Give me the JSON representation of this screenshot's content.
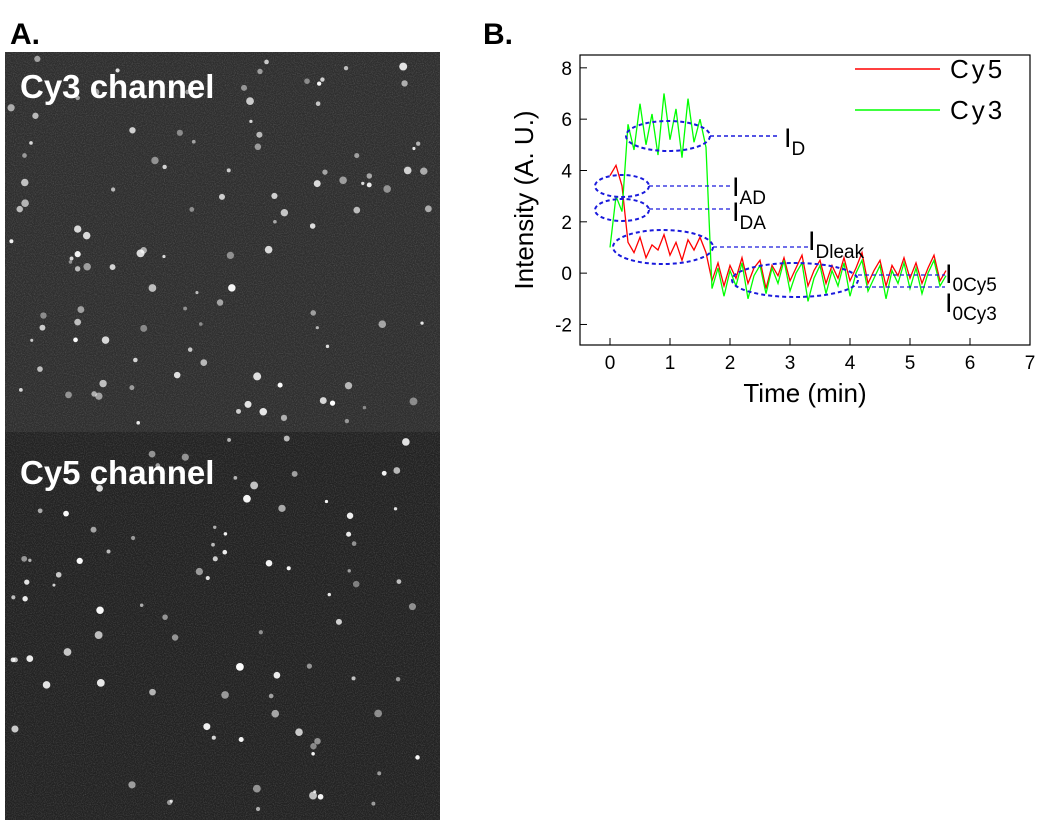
{
  "figure": {
    "panel_a": {
      "label": "A.",
      "channels": [
        "Cy3 channel",
        "Cy5 channel"
      ]
    },
    "panel_b_label": "B."
  },
  "chart_data": {
    "type": "line",
    "xlabel": "Time (min)",
    "ylabel": "Intensity (A. U.)",
    "x": [
      0,
      0.1,
      0.2,
      0.3,
      0.4,
      0.5,
      0.6,
      0.7,
      0.8,
      0.9,
      1.0,
      1.1,
      1.2,
      1.3,
      1.4,
      1.5,
      1.6,
      1.7,
      1.8,
      1.9,
      2.0,
      2.1,
      2.2,
      2.3,
      2.4,
      2.5,
      2.6,
      2.7,
      2.8,
      2.9,
      3.0,
      3.1,
      3.2,
      3.3,
      3.4,
      3.5,
      3.6,
      3.7,
      3.8,
      3.9,
      4.0,
      4.1,
      4.2,
      4.3,
      4.4,
      4.5,
      4.6,
      4.7,
      4.8,
      4.9,
      5.0,
      5.1,
      5.2,
      5.3,
      5.4,
      5.5,
      5.6
    ],
    "series": [
      {
        "name": "Cy5",
        "color": "#ff0000",
        "values": [
          3.8,
          4.2,
          3.4,
          1.2,
          0.8,
          1.4,
          0.6,
          1.1,
          0.9,
          1.5,
          0.7,
          1.2,
          0.5,
          1.3,
          0.9,
          1.4,
          0.8,
          -0.3,
          0.4,
          -0.5,
          0.3,
          -0.2,
          0.6,
          -0.4,
          0.2,
          0.5,
          -0.6,
          0.3,
          -0.1,
          0.6,
          -0.3,
          0.2,
          0.7,
          -0.5,
          0.1,
          0.5,
          -0.4,
          0.3,
          -0.2,
          0.6,
          -0.3,
          0.2,
          0.8,
          -0.4,
          0.1,
          0.5,
          -0.5,
          0.3,
          -0.1,
          0.6,
          -0.2,
          0.4,
          -0.4,
          0.2,
          0.7,
          -0.3,
          0.1
        ]
      },
      {
        "name": "Cy3",
        "color": "#00ff00",
        "values": [
          1.0,
          3.0,
          2.4,
          5.8,
          4.8,
          6.6,
          5.0,
          6.2,
          4.6,
          7.0,
          5.2,
          6.4,
          4.5,
          6.8,
          5.1,
          6.0,
          4.9,
          -0.6,
          0.2,
          -0.9,
          0.1,
          -0.5,
          0.4,
          -1.0,
          -0.1,
          0.3,
          -0.8,
          0.2,
          -0.4,
          0.5,
          -0.7,
          0.0,
          0.4,
          -1.1,
          -0.2,
          0.3,
          -0.8,
          0.1,
          -0.5,
          0.4,
          -0.9,
          0.0,
          0.5,
          -0.7,
          -0.2,
          0.3,
          -1.0,
          0.1,
          -0.4,
          0.4,
          -0.6,
          0.2,
          -0.8,
          0.0,
          0.5,
          -0.5,
          -0.1
        ]
      }
    ],
    "xlim": [
      -0.5,
      7
    ],
    "ylim": [
      -2.8,
      8.5
    ],
    "xticks": [
      0,
      1,
      2,
      3,
      4,
      5,
      6,
      7
    ],
    "yticks": [
      -2,
      0,
      2,
      4,
      6,
      8
    ],
    "legend": "upper right",
    "annotations": [
      {
        "main": "I",
        "sub": "D"
      },
      {
        "main": "I",
        "sub": "AD"
      },
      {
        "main": "I",
        "sub": "DA"
      },
      {
        "main": "I",
        "sub": "Dleak"
      },
      {
        "main": "I",
        "sub": "0Cy5"
      },
      {
        "main": "I",
        "sub": "0Cy3"
      }
    ]
  }
}
